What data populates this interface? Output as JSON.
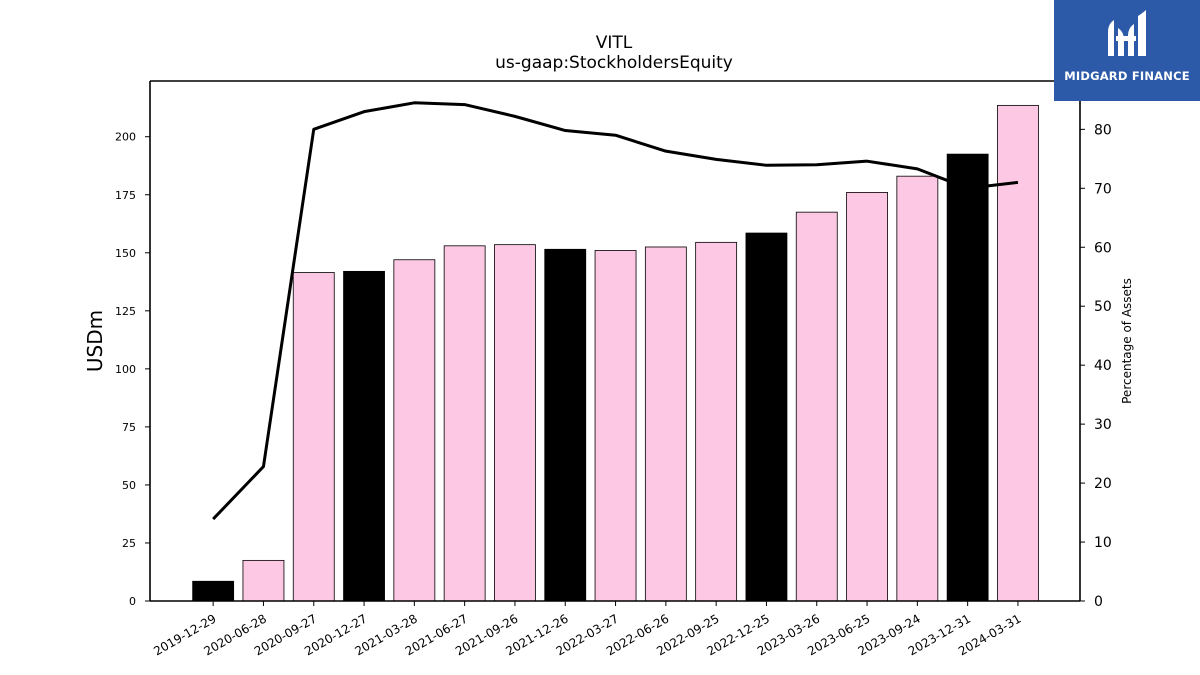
{
  "chart_data": {
    "type": "bar",
    "title": "VITL",
    "subtitle": "us-gaap:StockholdersEquity",
    "ylabel": "USDm",
    "y2label": "Percentage of Assets",
    "ylim": [
      0,
      224
    ],
    "y2lim": [
      0,
      88.2
    ],
    "yticks": [
      "0",
      "25",
      "50",
      "75",
      "100",
      "125",
      "150",
      "175",
      "200"
    ],
    "y2ticks": [
      "0",
      "10",
      "20",
      "30",
      "40",
      "50",
      "60",
      "70",
      "80"
    ],
    "categories": [
      "2019-12-29",
      "2020-06-28",
      "2020-09-27",
      "2020-12-27",
      "2021-03-28",
      "2021-06-27",
      "2021-09-26",
      "2021-12-26",
      "2022-03-27",
      "2022-06-26",
      "2022-09-25",
      "2022-12-25",
      "2023-03-26",
      "2023-06-25",
      "2023-09-24",
      "2023-12-31",
      "2024-03-31"
    ],
    "series": [
      {
        "type": "bar",
        "axis": "left",
        "values": [
          8.5,
          17.5,
          141.5,
          142,
          147,
          153,
          153.5,
          151.5,
          151,
          152.5,
          154.5,
          158.5,
          167.5,
          176,
          183,
          192.5,
          213.5
        ],
        "colors": [
          "#000000",
          "#fcc8e3",
          "#fcc8e3",
          "#000000",
          "#fcc8e3",
          "#fcc8e3",
          "#fcc8e3",
          "#000000",
          "#fcc8e3",
          "#fcc8e3",
          "#fcc8e3",
          "#000000",
          "#fcc8e3",
          "#fcc8e3",
          "#fcc8e3",
          "#000000",
          "#fcc8e3"
        ]
      },
      {
        "type": "line",
        "axis": "right",
        "color": "#000000",
        "values": [
          13.9,
          22.8,
          80.0,
          83.0,
          84.5,
          84.2,
          82.2,
          79.8,
          79.0,
          76.3,
          74.9,
          73.9,
          74.0,
          74.6,
          73.3,
          70.0,
          71.0
        ]
      }
    ],
    "grid": false,
    "legend": "none"
  },
  "logo": {
    "text": "MIDGARD FINANCE"
  }
}
